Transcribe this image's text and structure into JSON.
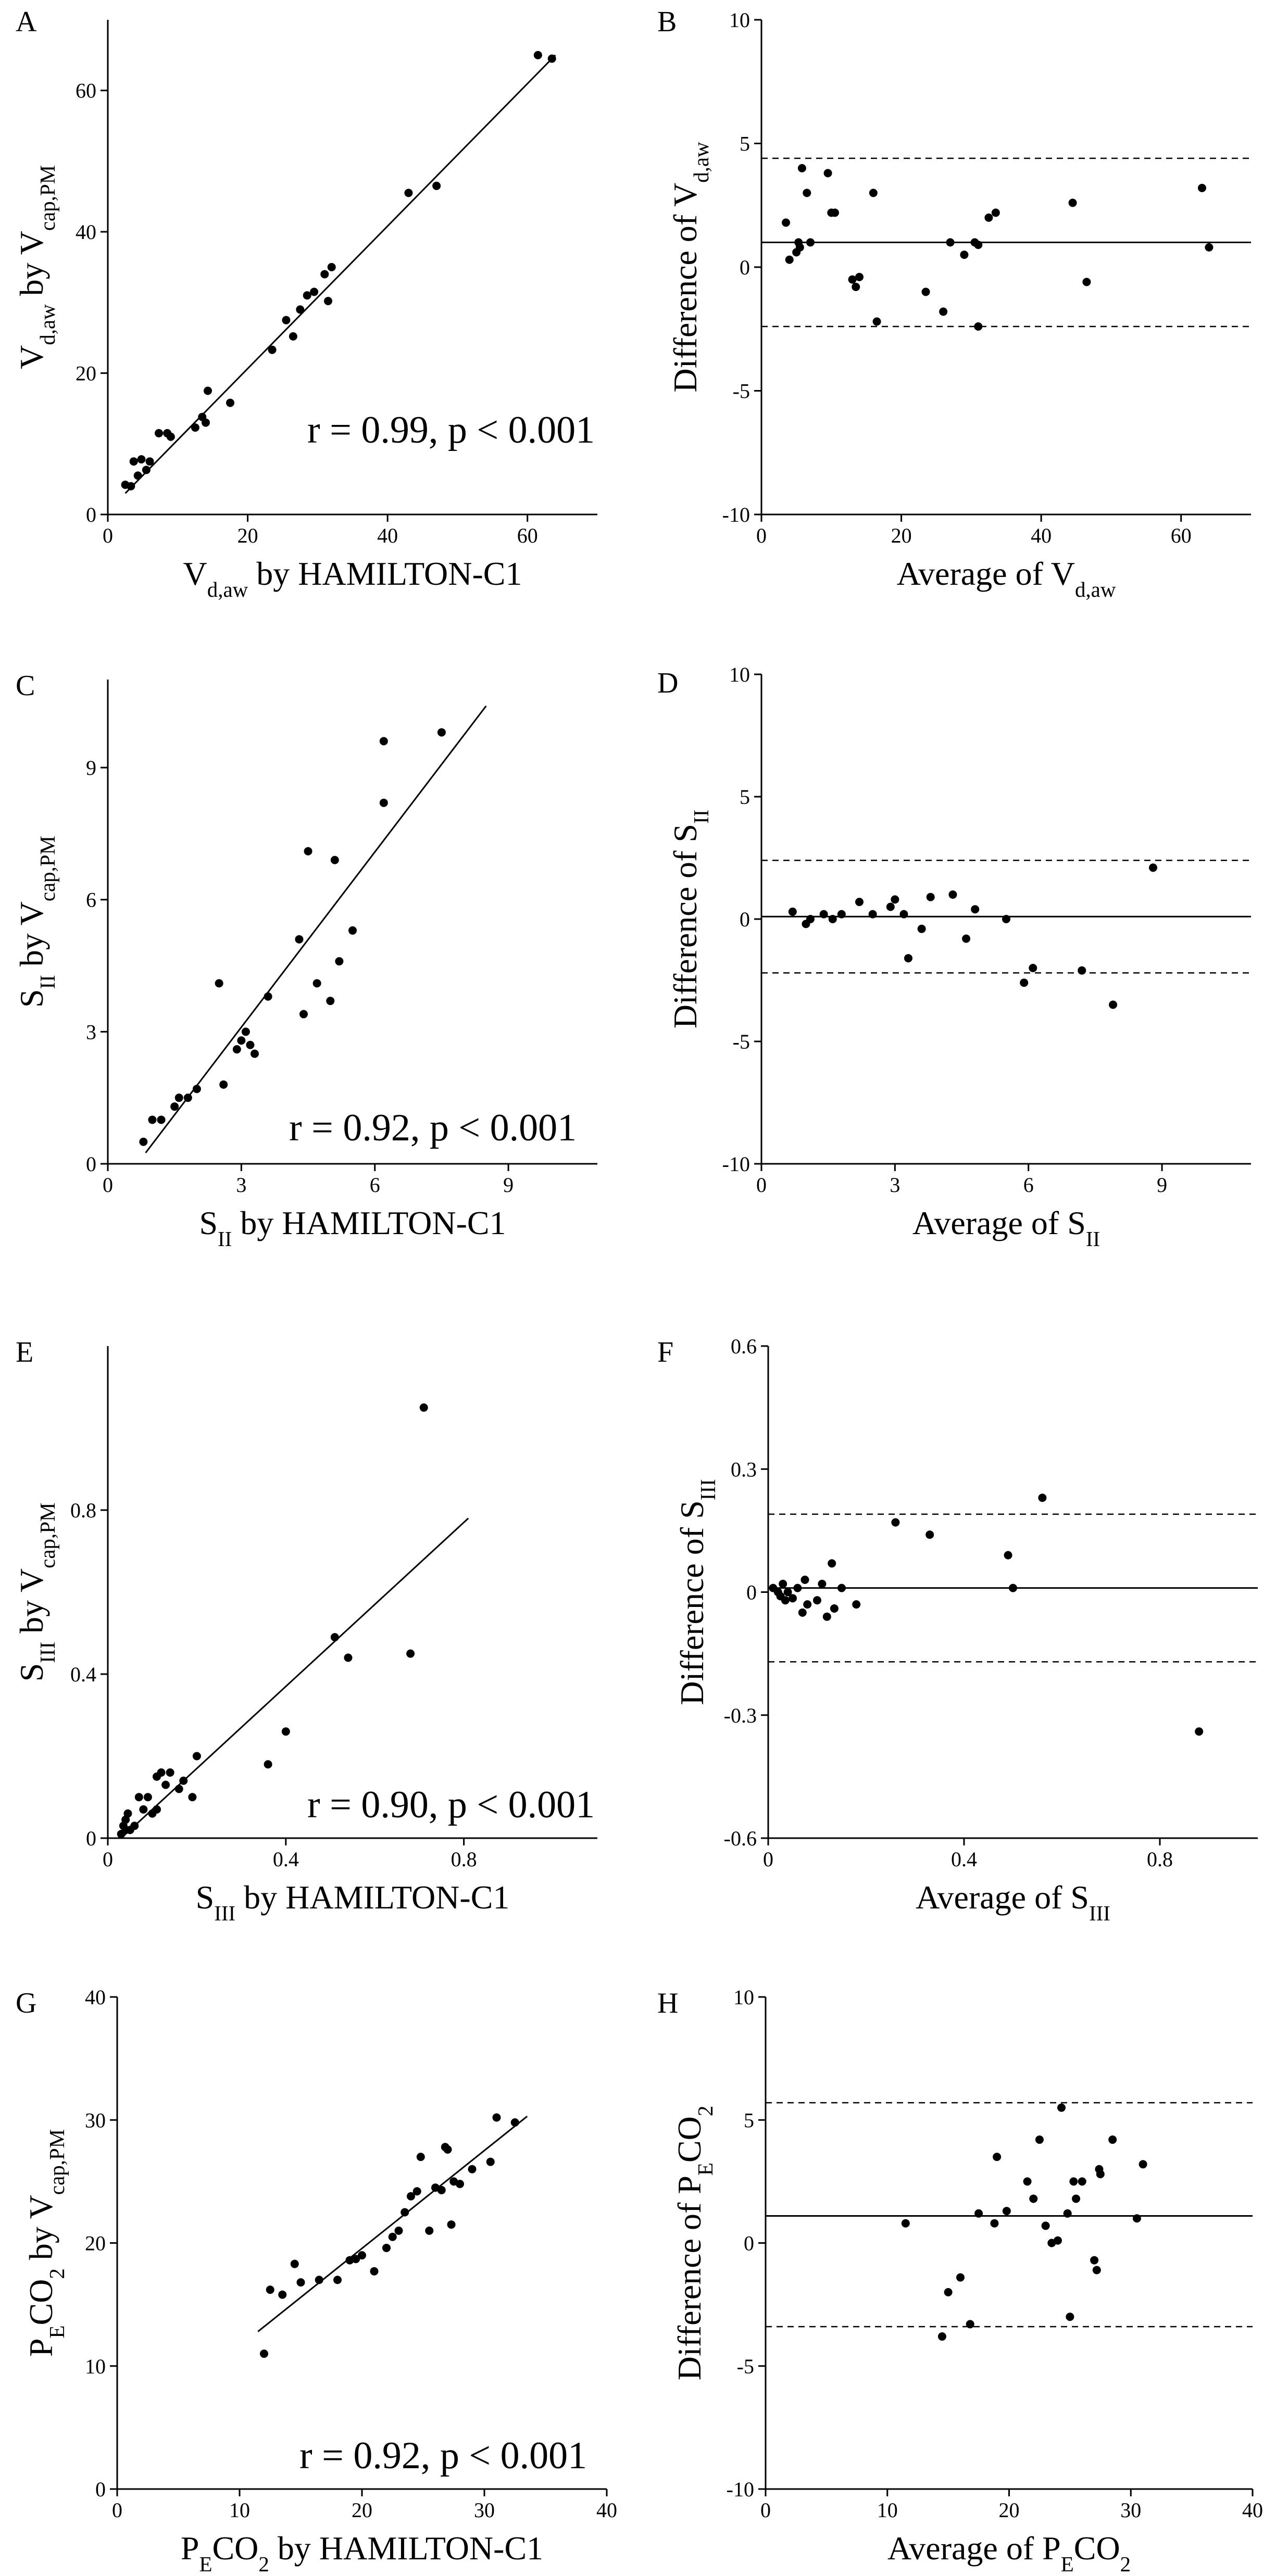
{
  "chart_data": [
    {
      "panel": "A",
      "type": "scatter",
      "xlabel": {
        "main": "V",
        "sub": "d,aw",
        "rest": " by HAMILTON-C1"
      },
      "ylabel": {
        "main": "V",
        "sub": "d,aw",
        "mid": " by V",
        "sub2": "cap,PM"
      },
      "xlim": [
        0,
        70
      ],
      "ylim": [
        0,
        70
      ],
      "xticks": [
        0,
        20,
        40,
        60
      ],
      "yticks": [
        0,
        20,
        40,
        60
      ],
      "annotation": "r = 0.99, p < 0.001",
      "regression": [
        [
          2.5,
          3.0
        ],
        [
          64,
          65
        ]
      ],
      "points": [
        [
          2.5,
          4.2
        ],
        [
          3.3,
          4.0
        ],
        [
          3.7,
          7.5
        ],
        [
          4.3,
          5.5
        ],
        [
          4.8,
          7.8
        ],
        [
          5.5,
          6.3
        ],
        [
          6.0,
          7.5
        ],
        [
          7.3,
          11.5
        ],
        [
          8.5,
          11.5
        ],
        [
          9.0,
          11.0
        ],
        [
          12.5,
          12.3
        ],
        [
          13.5,
          13.8
        ],
        [
          14.0,
          13.0
        ],
        [
          14.3,
          17.5
        ],
        [
          17.5,
          15.8
        ],
        [
          23.5,
          23.3
        ],
        [
          25.5,
          27.5
        ],
        [
          26.5,
          25.2
        ],
        [
          27.5,
          29.0
        ],
        [
          28.5,
          31.0
        ],
        [
          29.5,
          31.5
        ],
        [
          31.0,
          34.0
        ],
        [
          31.5,
          30.2
        ],
        [
          32.0,
          35.0
        ],
        [
          43.0,
          45.5
        ],
        [
          47.0,
          46.5
        ],
        [
          61.5,
          65.0
        ],
        [
          63.5,
          64.5
        ]
      ]
    },
    {
      "panel": "B",
      "type": "scatter",
      "xlabel": {
        "main": "Average of V",
        "sub": "d,aw"
      },
      "ylabel": {
        "main": "Difference of V",
        "sub": "d,aw"
      },
      "xlim": [
        0,
        70
      ],
      "ylim": [
        -10,
        10
      ],
      "xticks": [
        0,
        20,
        40,
        60
      ],
      "yticks": [
        -10,
        -5,
        0,
        5,
        10
      ],
      "mean": 1.0,
      "loa": [
        -2.4,
        4.4
      ],
      "points": [
        [
          3.5,
          1.8
        ],
        [
          4.0,
          0.3
        ],
        [
          5.0,
          0.6
        ],
        [
          5.3,
          1.0
        ],
        [
          5.5,
          0.8
        ],
        [
          5.8,
          4.0
        ],
        [
          6.5,
          3.0
        ],
        [
          7.0,
          1.0
        ],
        [
          9.5,
          3.8
        ],
        [
          10.0,
          2.2
        ],
        [
          10.5,
          2.2
        ],
        [
          13.0,
          -0.5
        ],
        [
          13.5,
          -0.8
        ],
        [
          14.0,
          -0.4
        ],
        [
          16.0,
          3.0
        ],
        [
          16.5,
          -2.2
        ],
        [
          23.5,
          -1.0
        ],
        [
          26.0,
          -1.8
        ],
        [
          27.0,
          1.0
        ],
        [
          29.0,
          0.5
        ],
        [
          30.5,
          1.0
        ],
        [
          31.0,
          0.9
        ],
        [
          31.0,
          -2.4
        ],
        [
          32.5,
          2.0
        ],
        [
          33.5,
          2.2
        ],
        [
          44.5,
          2.6
        ],
        [
          46.5,
          -0.6
        ],
        [
          63.0,
          3.2
        ],
        [
          64.0,
          0.8
        ]
      ]
    },
    {
      "panel": "C",
      "type": "scatter",
      "xlabel": {
        "main": "S",
        "sub": "II",
        "rest": " by HAMILTON-C1"
      },
      "ylabel": {
        "main": "S",
        "sub": "II",
        "mid": " by V",
        "sub2": "cap,PM"
      },
      "xlim": [
        0,
        11
      ],
      "ylim": [
        0,
        11
      ],
      "xticks": [
        0,
        3,
        6,
        9
      ],
      "yticks": [
        0,
        3,
        6,
        9
      ],
      "annotation": "r = 0.92, p < 0.001",
      "regression": [
        [
          0.85,
          0.25
        ],
        [
          8.5,
          10.4
        ]
      ],
      "points": [
        [
          0.8,
          0.5
        ],
        [
          1.0,
          1.0
        ],
        [
          1.2,
          1.0
        ],
        [
          1.5,
          1.3
        ],
        [
          1.6,
          1.5
        ],
        [
          1.8,
          1.5
        ],
        [
          2.0,
          1.7
        ],
        [
          2.5,
          4.1
        ],
        [
          2.6,
          1.8
        ],
        [
          2.9,
          2.6
        ],
        [
          3.0,
          2.8
        ],
        [
          3.1,
          3.0
        ],
        [
          3.2,
          2.7
        ],
        [
          3.3,
          2.5
        ],
        [
          3.6,
          3.8
        ],
        [
          4.3,
          5.1
        ],
        [
          4.4,
          3.4
        ],
        [
          4.5,
          7.1
        ],
        [
          4.7,
          4.1
        ],
        [
          5.0,
          3.7
        ],
        [
          5.1,
          6.9
        ],
        [
          5.2,
          4.6
        ],
        [
          5.5,
          5.3
        ],
        [
          6.2,
          8.2
        ],
        [
          6.2,
          9.6
        ],
        [
          7.5,
          9.8
        ]
      ]
    },
    {
      "panel": "D",
      "type": "scatter",
      "xlabel": {
        "main": "Average of S",
        "sub": "II"
      },
      "ylabel": {
        "main": "Difference of S",
        "sub": "II"
      },
      "xlim": [
        0,
        11
      ],
      "ylim": [
        -10,
        10
      ],
      "xticks": [
        0,
        3,
        6,
        9
      ],
      "yticks": [
        -10,
        -5,
        0,
        5,
        10
      ],
      "mean": 0.1,
      "loa": [
        -2.2,
        2.4
      ],
      "points": [
        [
          0.7,
          0.3
        ],
        [
          1.0,
          -0.2
        ],
        [
          1.1,
          0.0
        ],
        [
          1.4,
          0.2
        ],
        [
          1.6,
          0.0
        ],
        [
          1.8,
          0.2
        ],
        [
          2.2,
          0.7
        ],
        [
          2.5,
          0.2
        ],
        [
          2.9,
          0.5
        ],
        [
          3.0,
          0.8
        ],
        [
          3.2,
          0.2
        ],
        [
          3.3,
          -1.6
        ],
        [
          3.6,
          -0.4
        ],
        [
          3.8,
          0.9
        ],
        [
          4.3,
          1.0
        ],
        [
          4.6,
          -0.8
        ],
        [
          4.8,
          0.4
        ],
        [
          5.5,
          0.0
        ],
        [
          5.9,
          -2.6
        ],
        [
          6.1,
          -2.0
        ],
        [
          7.2,
          -2.1
        ],
        [
          7.9,
          -3.5
        ],
        [
          8.8,
          2.1
        ]
      ]
    },
    {
      "panel": "E",
      "type": "scatter",
      "xlabel": {
        "main": "S",
        "sub": "III",
        "rest": " by HAMILTON-C1"
      },
      "ylabel": {
        "main": "S",
        "sub": "III",
        "mid": " by V",
        "sub2": "cap,PM"
      },
      "xlim": [
        0,
        1.1
      ],
      "ylim": [
        0,
        1.2
      ],
      "xticks": [
        0,
        0.4,
        0.8
      ],
      "yticks": [
        0,
        0.4,
        0.8
      ],
      "annotation": "r = 0.90, p < 0.001",
      "regression": [
        [
          0.03,
          0.0
        ],
        [
          0.81,
          0.78
        ]
      ],
      "points": [
        [
          0.03,
          0.01
        ],
        [
          0.035,
          0.03
        ],
        [
          0.04,
          0.02
        ],
        [
          0.04,
          0.045
        ],
        [
          0.045,
          0.06
        ],
        [
          0.05,
          0.02
        ],
        [
          0.06,
          0.03
        ],
        [
          0.07,
          0.1
        ],
        [
          0.08,
          0.07
        ],
        [
          0.09,
          0.1
        ],
        [
          0.1,
          0.06
        ],
        [
          0.11,
          0.07
        ],
        [
          0.11,
          0.15
        ],
        [
          0.12,
          0.16
        ],
        [
          0.13,
          0.13
        ],
        [
          0.14,
          0.16
        ],
        [
          0.16,
          0.12
        ],
        [
          0.17,
          0.14
        ],
        [
          0.19,
          0.1
        ],
        [
          0.2,
          0.2
        ],
        [
          0.36,
          0.18
        ],
        [
          0.4,
          0.26
        ],
        [
          0.51,
          0.49
        ],
        [
          0.54,
          0.44
        ],
        [
          0.68,
          0.45
        ],
        [
          0.71,
          1.05
        ]
      ]
    },
    {
      "panel": "F",
      "type": "scatter",
      "xlabel": {
        "main": "Average of S",
        "sub": "III"
      },
      "ylabel": {
        "main": "Difference of S",
        "sub": "III"
      },
      "xlim": [
        0,
        1.0
      ],
      "ylim": [
        -0.6,
        0.6
      ],
      "xticks": [
        0,
        0.4,
        0.8
      ],
      "yticks": [
        -0.6,
        -0.3,
        0,
        0.3,
        0.6
      ],
      "mean": 0.01,
      "loa": [
        -0.17,
        0.19
      ],
      "points": [
        [
          0.01,
          0.01
        ],
        [
          0.02,
          0.0
        ],
        [
          0.025,
          -0.01
        ],
        [
          0.03,
          0.02
        ],
        [
          0.035,
          -0.02
        ],
        [
          0.04,
          0.0
        ],
        [
          0.05,
          -0.015
        ],
        [
          0.06,
          0.01
        ],
        [
          0.07,
          -0.05
        ],
        [
          0.075,
          0.03
        ],
        [
          0.08,
          -0.03
        ],
        [
          0.1,
          -0.02
        ],
        [
          0.11,
          0.02
        ],
        [
          0.12,
          -0.06
        ],
        [
          0.13,
          0.07
        ],
        [
          0.135,
          -0.04
        ],
        [
          0.15,
          0.01
        ],
        [
          0.18,
          -0.03
        ],
        [
          0.26,
          0.17
        ],
        [
          0.33,
          0.14
        ],
        [
          0.49,
          0.09
        ],
        [
          0.5,
          0.01
        ],
        [
          0.56,
          0.23
        ],
        [
          0.88,
          -0.34
        ]
      ]
    },
    {
      "panel": "G",
      "type": "scatter",
      "xlabel": {
        "main": "P",
        "sub": "E",
        "mid": "CO",
        "sub2": "2",
        "rest": " by HAMILTON-C1"
      },
      "ylabel": {
        "main": "P",
        "sub": "E",
        "mid": "CO",
        "sub2": "2",
        "rest": " by V",
        "sub3": "cap,PM"
      },
      "xlim": [
        0,
        40
      ],
      "ylim": [
        0,
        40
      ],
      "xticks": [
        0,
        10,
        20,
        30,
        40
      ],
      "yticks": [
        0,
        10,
        20,
        30,
        40
      ],
      "annotation": "r = 0.92, p < 0.001",
      "regression": [
        [
          11.5,
          12.8
        ],
        [
          33.5,
          30.3
        ]
      ],
      "points": [
        [
          12.0,
          11.0
        ],
        [
          12.5,
          16.2
        ],
        [
          13.5,
          15.8
        ],
        [
          14.5,
          18.3
        ],
        [
          15.0,
          16.8
        ],
        [
          16.5,
          17.0
        ],
        [
          18.0,
          17.0
        ],
        [
          19.0,
          18.6
        ],
        [
          19.5,
          18.7
        ],
        [
          20.0,
          19.0
        ],
        [
          21.0,
          17.7
        ],
        [
          22.0,
          19.6
        ],
        [
          22.5,
          20.5
        ],
        [
          23.0,
          21.0
        ],
        [
          23.5,
          22.5
        ],
        [
          24.0,
          23.8
        ],
        [
          24.5,
          24.2
        ],
        [
          24.8,
          27.0
        ],
        [
          25.5,
          21.0
        ],
        [
          26.0,
          24.5
        ],
        [
          26.5,
          24.3
        ],
        [
          26.8,
          27.8
        ],
        [
          27.0,
          27.6
        ],
        [
          27.3,
          21.5
        ],
        [
          27.5,
          25.0
        ],
        [
          28.0,
          24.8
        ],
        [
          29.0,
          26.0
        ],
        [
          30.5,
          26.6
        ],
        [
          31.0,
          30.2
        ],
        [
          32.5,
          29.8
        ]
      ]
    },
    {
      "panel": "H",
      "type": "scatter",
      "xlabel": {
        "main": "Average of P",
        "sub": "E",
        "mid": "CO",
        "sub2": "2"
      },
      "ylabel": {
        "main": "Difference of P",
        "sub": "E",
        "mid": "CO",
        "sub2": "2"
      },
      "xlim": [
        0,
        40
      ],
      "ylim": [
        -10,
        10
      ],
      "xticks": [
        0,
        10,
        20,
        30,
        40
      ],
      "yticks": [
        -10,
        -5,
        0,
        5,
        10
      ],
      "mean": 1.1,
      "loa": [
        -3.4,
        5.7
      ],
      "points": [
        [
          11.5,
          0.8
        ],
        [
          14.5,
          -3.8
        ],
        [
          15.0,
          -2.0
        ],
        [
          16.0,
          -1.4
        ],
        [
          16.8,
          -3.3
        ],
        [
          17.5,
          1.2
        ],
        [
          18.8,
          0.8
        ],
        [
          19.0,
          3.5
        ],
        [
          19.8,
          1.3
        ],
        [
          21.5,
          2.5
        ],
        [
          22.0,
          1.8
        ],
        [
          22.5,
          4.2
        ],
        [
          23.0,
          0.7
        ],
        [
          23.5,
          0.0
        ],
        [
          24.0,
          0.1
        ],
        [
          24.3,
          5.5
        ],
        [
          24.8,
          1.2
        ],
        [
          25.0,
          -3.0
        ],
        [
          25.3,
          2.5
        ],
        [
          25.5,
          1.8
        ],
        [
          26.0,
          2.5
        ],
        [
          27.0,
          -0.7
        ],
        [
          27.2,
          -1.1
        ],
        [
          27.5,
          2.8
        ],
        [
          28.5,
          4.2
        ],
        [
          30.5,
          1.0
        ],
        [
          31.0,
          3.2
        ],
        [
          27.4,
          3.0
        ]
      ]
    }
  ]
}
